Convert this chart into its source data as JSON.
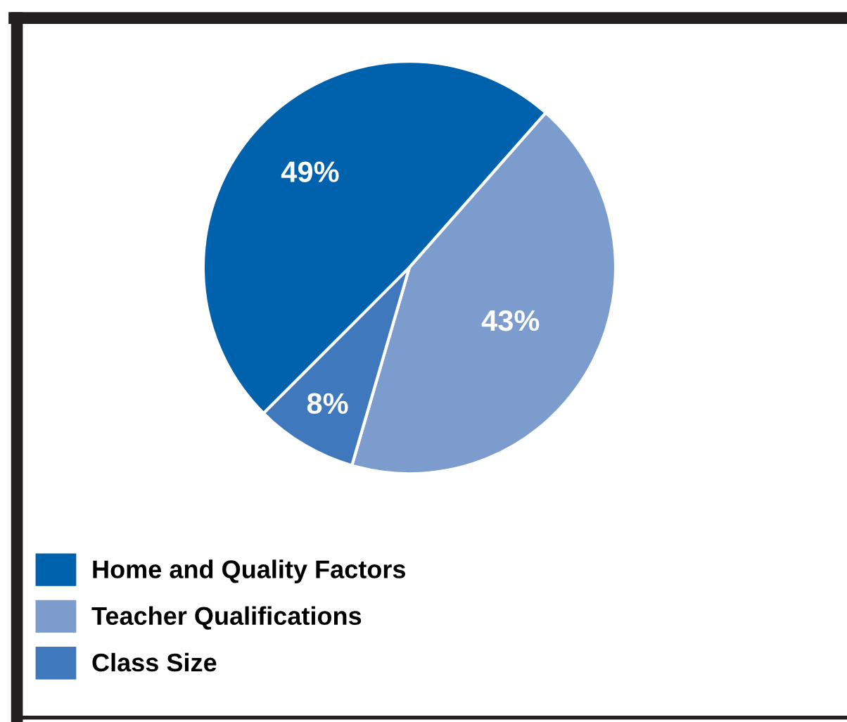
{
  "chart_data": {
    "type": "pie",
    "categories": [
      "Home and Quality Factors",
      "Teacher Qualifications",
      "Class Size"
    ],
    "values": [
      49,
      43,
      8
    ],
    "value_labels": [
      "49%",
      "43%",
      "8%"
    ],
    "colors": [
      "#0062ad",
      "#7b9ccc",
      "#3f78bc"
    ],
    "legend": "bottom left"
  }
}
